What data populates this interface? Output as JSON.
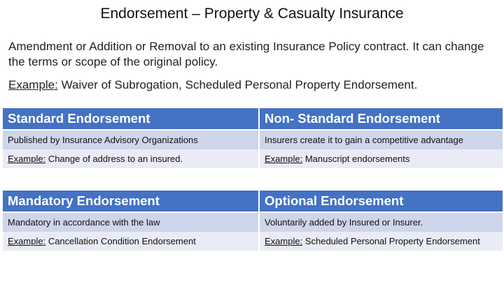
{
  "title": "Endorsement – Property & Casualty Insurance",
  "description": "Amendment or Addition or Removal to an existing Insurance Policy contract. It can change the terms or scope of the original policy.",
  "example": {
    "label": "Example:",
    "text": " Waiver of Subrogation, Scheduled Personal Property Endorsement."
  },
  "tables": [
    {
      "headers": [
        "Standard Endorsement",
        "Non- Standard Endorsement"
      ],
      "descriptions": [
        "Published by Insurance Advisory Organizations",
        "Insurers create it to gain a competitive advantage"
      ],
      "examples": [
        {
          "label": "Example:",
          "text": " Change of address to an insured."
        },
        {
          "label": "Example:",
          "text": " Manuscript endorsements"
        }
      ]
    },
    {
      "headers": [
        "Mandatory Endorsement",
        "Optional Endorsement"
      ],
      "descriptions": [
        "Mandatory in accordance with the law",
        "Voluntarily added by Insured or Insurer."
      ],
      "examples": [
        {
          "label": "Example:",
          "text": " Cancellation Condition Endorsement"
        },
        {
          "label": "Example:",
          "text": " Scheduled Personal Property Endorsement"
        }
      ]
    }
  ],
  "colors": {
    "header": "#4472c4",
    "row_dark": "#cfd5ea",
    "row_light": "#e9ebf5"
  }
}
